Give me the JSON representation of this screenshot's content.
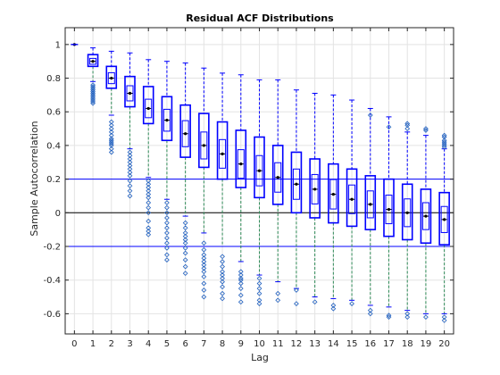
{
  "chart_data": {
    "type": "box",
    "title": "Residual ACF Distributions",
    "xlabel": "Lag",
    "ylabel": "Sample Autocorrelation",
    "categories": [
      "0",
      "1",
      "2",
      "3",
      "4",
      "5",
      "6",
      "7",
      "8",
      "9",
      "10",
      "11",
      "12",
      "13",
      "14",
      "15",
      "16",
      "17",
      "18",
      "19",
      "20"
    ],
    "xlim": [
      -0.5,
      20.5
    ],
    "ylim": [
      -0.72,
      1.1
    ],
    "yticks": [
      -0.6,
      -0.4,
      -0.2,
      0,
      0.2,
      0.4,
      0.6,
      0.8,
      1
    ],
    "grid": true,
    "reference_lines": [
      0.2,
      0,
      -0.2
    ],
    "colors": {
      "box": "#0000ff",
      "median": "#000000",
      "outlier": "#1f5fbf",
      "reference": "#0000ff",
      "zero_line": "#000000",
      "whisker_dash": "#2e8b57"
    },
    "boxes": [
      {
        "lag": 0,
        "q1": 1.0,
        "median": 1.0,
        "q3": 1.0,
        "lower_whisker": 1.0,
        "upper_whisker": 1.0,
        "outliers": []
      },
      {
        "lag": 1,
        "q1": 0.87,
        "median": 0.9,
        "q3": 0.94,
        "lower_whisker": 0.78,
        "upper_whisker": 0.98,
        "outliers": [
          0.76,
          0.75,
          0.74,
          0.73,
          0.72,
          0.71,
          0.7,
          0.69,
          0.68,
          0.67,
          0.66,
          0.65
        ]
      },
      {
        "lag": 2,
        "q1": 0.74,
        "median": 0.8,
        "q3": 0.87,
        "lower_whisker": 0.58,
        "upper_whisker": 0.96,
        "outliers": [
          0.54,
          0.52,
          0.5,
          0.48,
          0.46,
          0.44,
          0.43,
          0.42,
          0.41,
          0.4,
          0.38,
          0.36
        ]
      },
      {
        "lag": 3,
        "q1": 0.63,
        "median": 0.71,
        "q3": 0.81,
        "lower_whisker": 0.38,
        "upper_whisker": 0.95,
        "outliers": [
          0.36,
          0.34,
          0.32,
          0.3,
          0.28,
          0.26,
          0.24,
          0.22,
          0.19,
          0.16,
          0.13,
          0.1
        ]
      },
      {
        "lag": 4,
        "q1": 0.53,
        "median": 0.62,
        "q3": 0.75,
        "lower_whisker": 0.21,
        "upper_whisker": 0.91,
        "outliers": [
          0.19,
          0.17,
          0.15,
          0.13,
          0.11,
          0.09,
          0.06,
          0.03,
          0.0,
          -0.05,
          -0.09,
          -0.11,
          -0.13
        ]
      },
      {
        "lag": 5,
        "q1": 0.43,
        "median": 0.55,
        "q3": 0.69,
        "lower_whisker": 0.08,
        "upper_whisker": 0.9,
        "outliers": [
          0.06,
          0.03,
          0.0,
          -0.03,
          -0.06,
          -0.09,
          -0.12,
          -0.15,
          -0.18,
          -0.21,
          -0.25,
          -0.28
        ]
      },
      {
        "lag": 6,
        "q1": 0.33,
        "median": 0.47,
        "q3": 0.64,
        "lower_whisker": -0.02,
        "upper_whisker": 0.89,
        "outliers": [
          -0.06,
          -0.09,
          -0.12,
          -0.14,
          -0.16,
          -0.18,
          -0.21,
          -0.24,
          -0.28,
          -0.32,
          -0.36
        ]
      },
      {
        "lag": 7,
        "q1": 0.27,
        "median": 0.4,
        "q3": 0.59,
        "lower_whisker": -0.12,
        "upper_whisker": 0.86,
        "outliers": [
          -0.18,
          -0.22,
          -0.25,
          -0.27,
          -0.29,
          -0.31,
          -0.33,
          -0.35,
          -0.38,
          -0.42,
          -0.46,
          -0.5
        ]
      },
      {
        "lag": 8,
        "q1": 0.2,
        "median": 0.35,
        "q3": 0.54,
        "lower_whisker": -0.2,
        "upper_whisker": 0.83,
        "outliers": [
          -0.26,
          -0.29,
          -0.32,
          -0.35,
          -0.37,
          -0.39,
          -0.41,
          -0.44,
          -0.48,
          -0.51
        ]
      },
      {
        "lag": 9,
        "q1": 0.15,
        "median": 0.29,
        "q3": 0.49,
        "lower_whisker": -0.29,
        "upper_whisker": 0.82,
        "outliers": [
          -0.35,
          -0.37,
          -0.39,
          -0.4,
          -0.42,
          -0.45,
          -0.49,
          -0.53
        ]
      },
      {
        "lag": 10,
        "q1": 0.09,
        "median": 0.25,
        "q3": 0.45,
        "lower_whisker": -0.37,
        "upper_whisker": 0.79,
        "outliers": [
          -0.39,
          -0.42,
          -0.45,
          -0.48,
          -0.52,
          -0.54
        ]
      },
      {
        "lag": 11,
        "q1": 0.05,
        "median": 0.21,
        "q3": 0.4,
        "lower_whisker": -0.41,
        "upper_whisker": 0.79,
        "outliers": [
          -0.48,
          -0.52
        ]
      },
      {
        "lag": 12,
        "q1": 0.0,
        "median": 0.17,
        "q3": 0.36,
        "lower_whisker": -0.45,
        "upper_whisker": 0.73,
        "outliers": [
          -0.46,
          -0.54
        ]
      },
      {
        "lag": 13,
        "q1": -0.03,
        "median": 0.14,
        "q3": 0.32,
        "lower_whisker": -0.5,
        "upper_whisker": 0.71,
        "outliers": [
          -0.53
        ]
      },
      {
        "lag": 14,
        "q1": -0.06,
        "median": 0.11,
        "q3": 0.29,
        "lower_whisker": -0.51,
        "upper_whisker": 0.7,
        "outliers": [
          -0.55,
          -0.57
        ]
      },
      {
        "lag": 15,
        "q1": -0.08,
        "median": 0.08,
        "q3": 0.26,
        "lower_whisker": -0.52,
        "upper_whisker": 0.67,
        "outliers": [
          -0.54
        ]
      },
      {
        "lag": 16,
        "q1": -0.1,
        "median": 0.05,
        "q3": 0.22,
        "lower_whisker": -0.55,
        "upper_whisker": 0.62,
        "outliers": [
          -0.58,
          -0.6,
          0.58
        ]
      },
      {
        "lag": 17,
        "q1": -0.14,
        "median": 0.02,
        "q3": 0.2,
        "lower_whisker": -0.56,
        "upper_whisker": 0.57,
        "outliers": [
          -0.61,
          -0.62,
          0.51
        ]
      },
      {
        "lag": 18,
        "q1": -0.16,
        "median": 0.0,
        "q3": 0.17,
        "lower_whisker": -0.58,
        "upper_whisker": 0.48,
        "outliers": [
          -0.6,
          -0.62,
          0.5,
          0.52,
          0.53
        ]
      },
      {
        "lag": 19,
        "q1": -0.18,
        "median": -0.02,
        "q3": 0.14,
        "lower_whisker": -0.6,
        "upper_whisker": 0.46,
        "outliers": [
          -0.62,
          0.49,
          0.5
        ]
      },
      {
        "lag": 20,
        "q1": -0.19,
        "median": -0.04,
        "q3": 0.12,
        "lower_whisker": -0.6,
        "upper_whisker": 0.38,
        "outliers": [
          -0.62,
          -0.64,
          0.39,
          0.4,
          0.41,
          0.42,
          0.43,
          0.45,
          0.46
        ]
      }
    ]
  }
}
